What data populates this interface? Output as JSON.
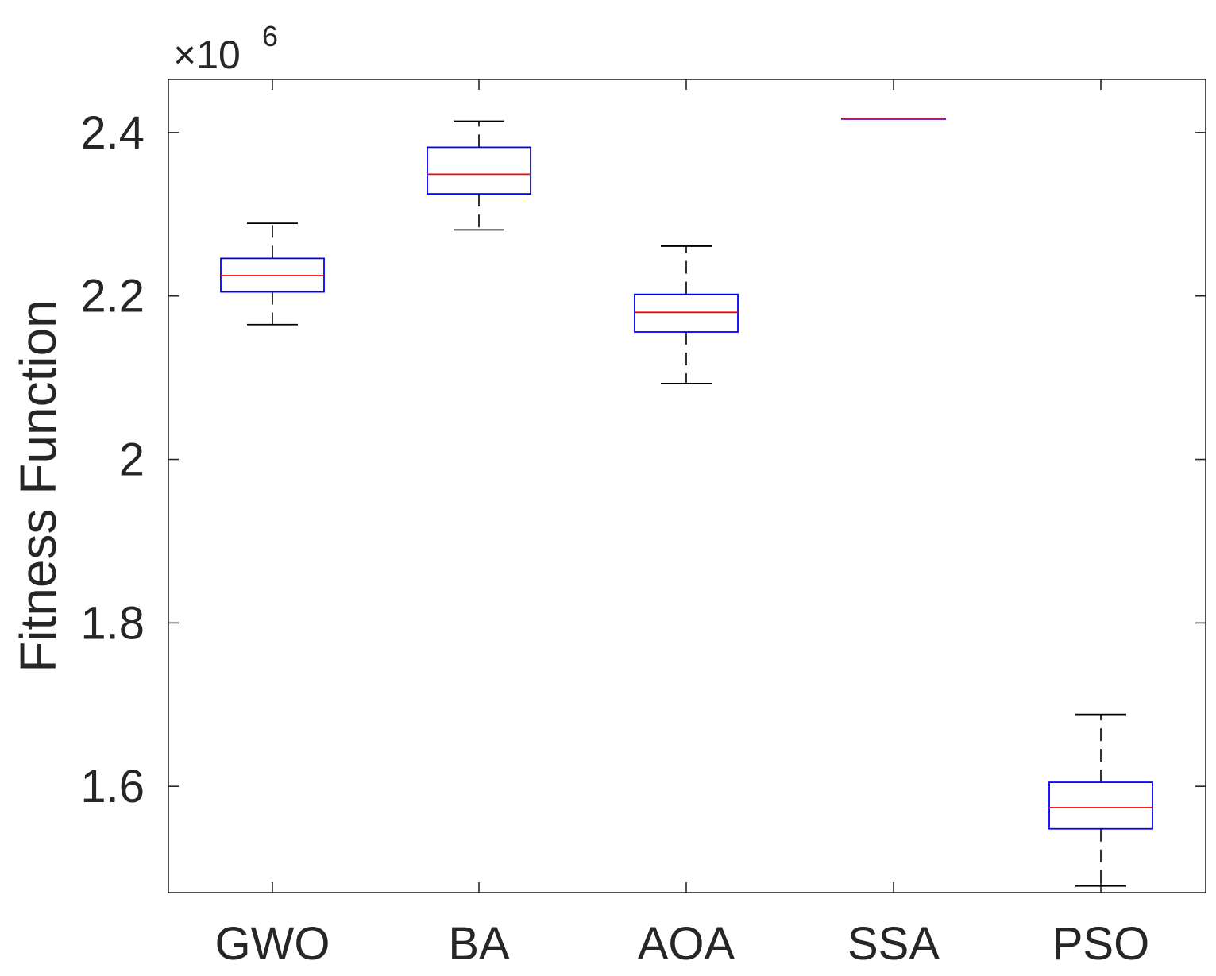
{
  "chart_data": {
    "type": "boxplot",
    "title": "",
    "xlabel": "",
    "ylabel": "Fitness Function",
    "y_exponent_base": "×10",
    "y_exponent": "6",
    "ylim": [
      1.47,
      2.465
    ],
    "yticks": [
      1.6,
      1.8,
      2.0,
      2.2,
      2.4
    ],
    "ytick_labels": [
      "1.6",
      "1.8",
      "2",
      "2.2",
      "2.4"
    ],
    "categories": [
      "GWO",
      "BA",
      "AOA",
      "SSA",
      "PSO"
    ],
    "boxes": [
      {
        "name": "GWO",
        "whisker_low": 2.165,
        "q1": 2.205,
        "median": 2.225,
        "q3": 2.246,
        "whisker_high": 2.289
      },
      {
        "name": "BA",
        "whisker_low": 2.281,
        "q1": 2.325,
        "median": 2.349,
        "q3": 2.382,
        "whisker_high": 2.414
      },
      {
        "name": "AOA",
        "whisker_low": 2.093,
        "q1": 2.156,
        "median": 2.18,
        "q3": 2.202,
        "whisker_high": 2.261
      },
      {
        "name": "SSA",
        "whisker_low": 2.417,
        "q1": 2.417,
        "median": 2.417,
        "q3": 2.417,
        "whisker_high": 2.417
      },
      {
        "name": "PSO",
        "whisker_low": 1.478,
        "q1": 1.548,
        "median": 1.574,
        "q3": 1.605,
        "whisker_high": 1.688
      }
    ],
    "grid": false,
    "colors": {
      "box": "#0000ff",
      "median": "#ff0000",
      "whisker": "#000000",
      "axis": "#262626"
    }
  }
}
